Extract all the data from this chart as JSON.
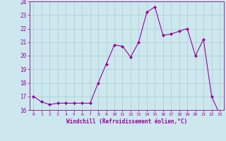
{
  "x": [
    0,
    1,
    2,
    3,
    4,
    5,
    6,
    7,
    8,
    9,
    10,
    11,
    12,
    13,
    14,
    15,
    16,
    17,
    18,
    19,
    20,
    21,
    22,
    23
  ],
  "y": [
    17.0,
    16.6,
    16.4,
    16.5,
    16.5,
    16.5,
    16.5,
    16.5,
    18.0,
    19.4,
    20.8,
    20.7,
    19.9,
    21.0,
    23.2,
    23.6,
    21.5,
    21.6,
    21.8,
    22.0,
    20.0,
    21.2,
    17.0,
    15.7
  ],
  "line_color": "#990099",
  "marker": "D",
  "marker_size": 2,
  "bg_color": "#cce8ee",
  "grid_color": "#aacccc",
  "xlabel": "Windchill (Refroidissement éolien,°C)",
  "xlabel_color": "#990099",
  "tick_color": "#990099",
  "label_color": "#990099",
  "ylim": [
    16,
    24
  ],
  "yticks": [
    16,
    17,
    18,
    19,
    20,
    21,
    22,
    23,
    24
  ],
  "xlim": [
    -0.5,
    23.5
  ],
  "xticks": [
    0,
    1,
    2,
    3,
    4,
    5,
    6,
    7,
    8,
    9,
    10,
    11,
    12,
    13,
    14,
    15,
    16,
    17,
    18,
    19,
    20,
    21,
    22,
    23
  ]
}
